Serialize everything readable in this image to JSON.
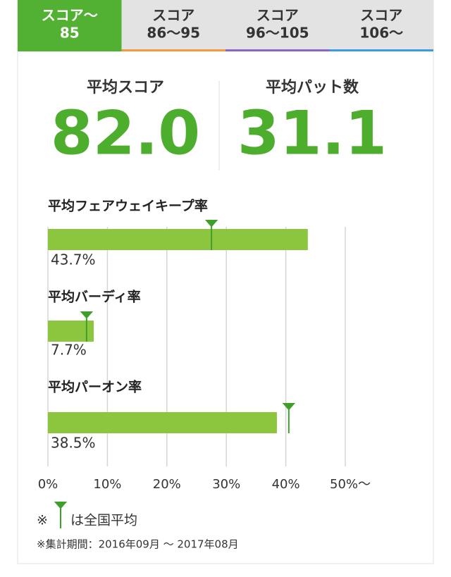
{
  "tabs": [
    {
      "line1": "スコア～",
      "line2": "85"
    },
    {
      "line1": "スコア",
      "line2": "86～95"
    },
    {
      "line1": "スコア",
      "line2": "96～105"
    },
    {
      "line1": "スコア",
      "line2": "106～"
    }
  ],
  "active_tab": 0,
  "stats": [
    {
      "label": "平均スコア",
      "value": "82.0"
    },
    {
      "label": "平均パット数",
      "value": "31.1"
    }
  ],
  "chart_data": {
    "type": "bar",
    "orientation": "horizontal",
    "categories": [
      "平均フェアウェイキープ率",
      "平均バーディ率",
      "平均パーオン率"
    ],
    "values": [
      43.7,
      7.7,
      38.5
    ],
    "value_labels": [
      "43.7%",
      "7.7%",
      "38.5%"
    ],
    "averages": [
      27.5,
      6.5,
      40.5
    ],
    "color": "#8cc63f",
    "average_color": "#3ea02a",
    "xlim": [
      0,
      50
    ],
    "xticks": [
      {
        "value": 0,
        "label": "0%"
      },
      {
        "value": 10,
        "label": "10%"
      },
      {
        "value": 20,
        "label": "20%"
      },
      {
        "value": 30,
        "label": "30%"
      },
      {
        "value": 40,
        "label": "40%"
      },
      {
        "value": 50,
        "label": "50%～"
      }
    ],
    "grid": true,
    "legend_mark": "※",
    "legend_text": "は全国平均"
  },
  "footnote": "※集計期間：2016年09月 ～ 2017年08月"
}
